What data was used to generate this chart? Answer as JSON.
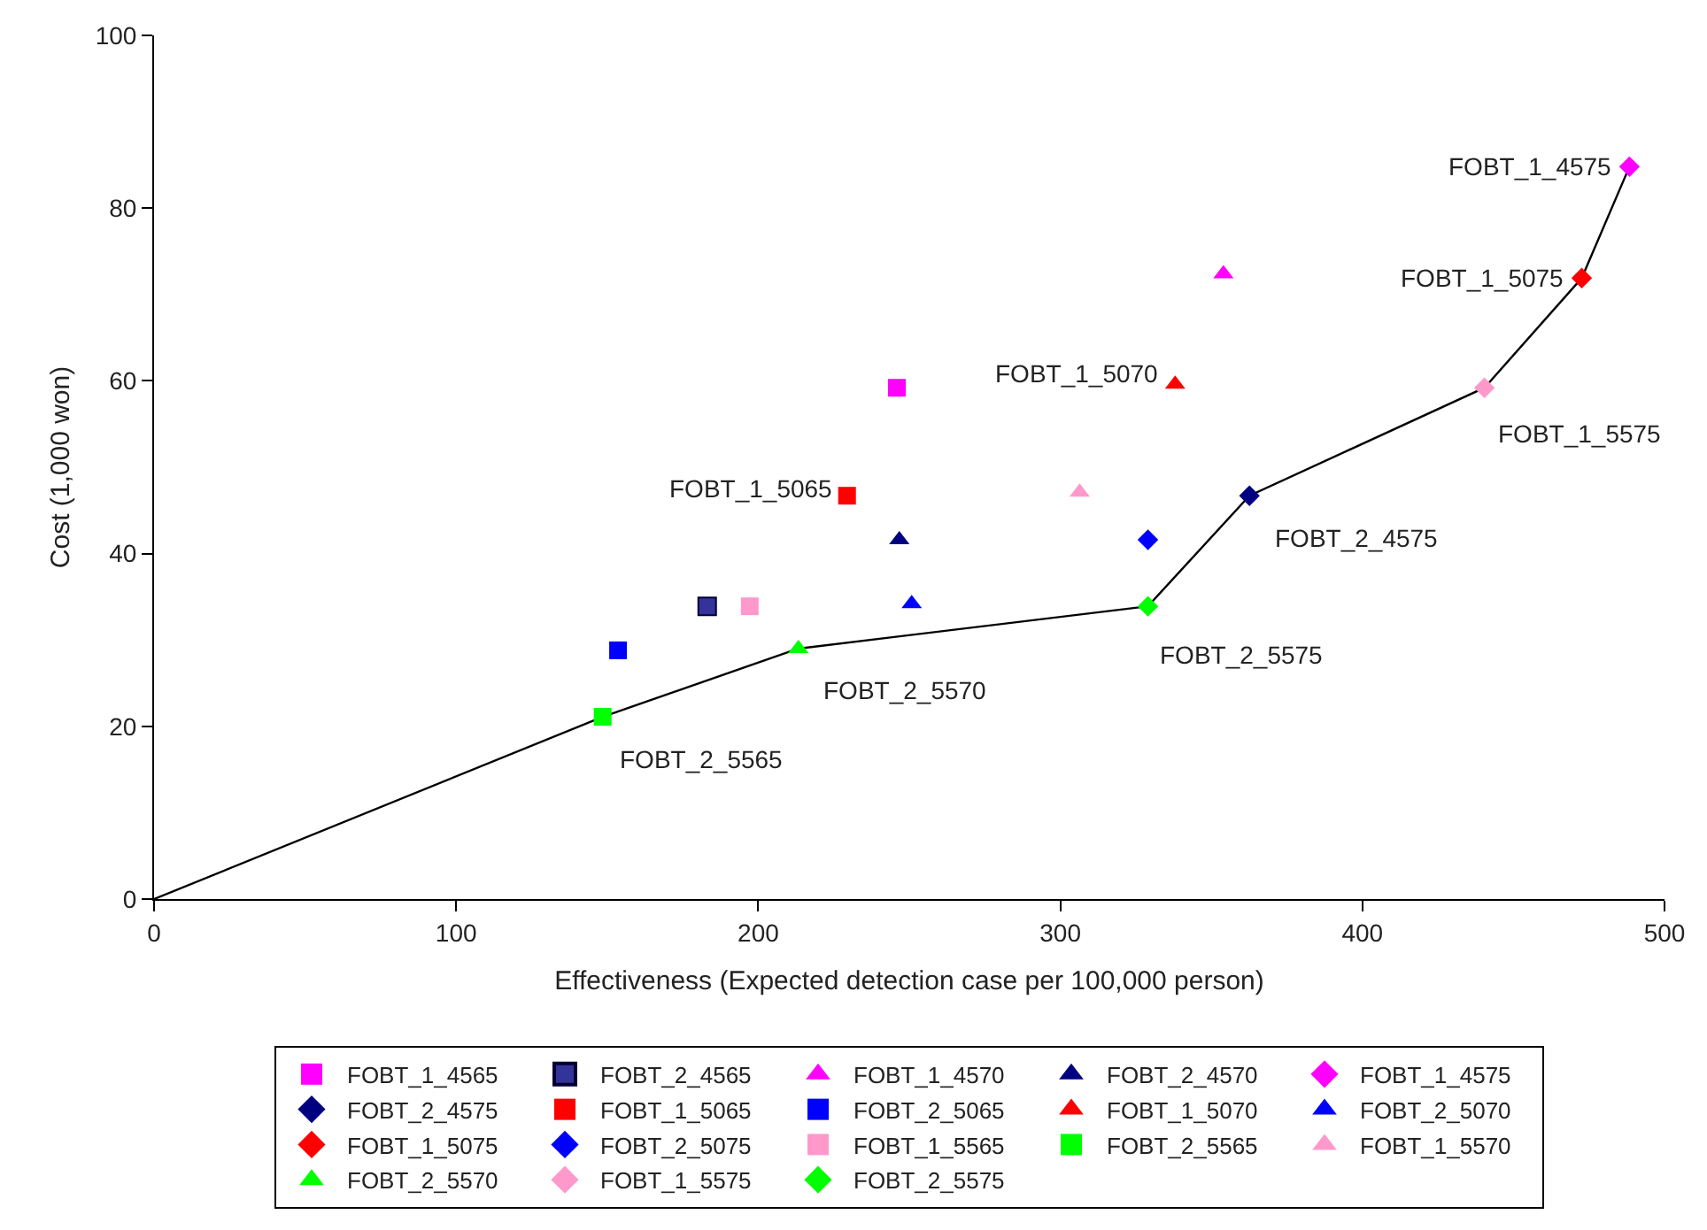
{
  "chart_data": {
    "type": "scatter",
    "xlabel": "Effectiveness (Expected detection case per 100,000 person)",
    "ylabel": "Cost (1,000 won)",
    "xlim": [
      0,
      500
    ],
    "xticks": [
      0,
      100,
      200,
      300,
      400,
      500
    ],
    "ylim": [
      0,
      100
    ],
    "yticks": [
      0,
      20,
      40,
      60,
      80,
      100
    ],
    "legend": "bottom",
    "series": [
      {
        "name": "FOBT_1_4565",
        "color": "#ff00ff",
        "marker": "square",
        "x": [
          245.9
        ],
        "values": [
          59.2
        ]
      },
      {
        "name": "FOBT_2_4565",
        "color": "#333399",
        "marker": "square",
        "x": [
          183.1
        ],
        "values": [
          33.9
        ]
      },
      {
        "name": "FOBT_1_4570",
        "color": "#ff00ff",
        "marker": "triangle",
        "x": [
          354.0
        ],
        "values": [
          72.4
        ]
      },
      {
        "name": "FOBT_2_4570",
        "color": "#000080",
        "marker": "triangle",
        "x": [
          246.7
        ],
        "values": [
          41.6
        ]
      },
      {
        "name": "FOBT_1_4575",
        "color": "#ff00ff",
        "marker": "diamond",
        "x": [
          488.4
        ],
        "values": [
          84.8
        ]
      },
      {
        "name": "FOBT_2_4575",
        "color": "#000080",
        "marker": "diamond",
        "x": [
          362.6
        ],
        "values": [
          46.7
        ]
      },
      {
        "name": "FOBT_1_5065",
        "color": "#ff0000",
        "marker": "square",
        "x": [
          229.4
        ],
        "values": [
          46.7
        ]
      },
      {
        "name": "FOBT_2_5065",
        "color": "#0000ff",
        "marker": "square",
        "x": [
          153.6
        ],
        "values": [
          28.8
        ]
      },
      {
        "name": "FOBT_1_5070",
        "color": "#ff0000",
        "marker": "triangle",
        "x": [
          338.0
        ],
        "values": [
          59.6
        ]
      },
      {
        "name": "FOBT_2_5070",
        "color": "#0000ff",
        "marker": "triangle",
        "x": [
          250.8
        ],
        "values": [
          34.2
        ]
      },
      {
        "name": "FOBT_1_5075",
        "color": "#ff0000",
        "marker": "diamond",
        "x": [
          472.6
        ],
        "values": [
          71.9
        ]
      },
      {
        "name": "FOBT_2_5075",
        "color": "#0000ff",
        "marker": "diamond",
        "x": [
          329.0
        ],
        "values": [
          41.6
        ]
      },
      {
        "name": "FOBT_1_5565",
        "color": "#ff99cc",
        "marker": "square",
        "x": [
          197.2
        ],
        "values": [
          33.9
        ]
      },
      {
        "name": "FOBT_2_5565",
        "color": "#00ff00",
        "marker": "square",
        "x": [
          148.5
        ],
        "values": [
          21.1
        ]
      },
      {
        "name": "FOBT_1_5570",
        "color": "#ff99cc",
        "marker": "triangle",
        "x": [
          306.4
        ],
        "values": [
          47.1
        ]
      },
      {
        "name": "FOBT_2_5570",
        "color": "#00ff00",
        "marker": "triangle",
        "x": [
          213.3
        ],
        "values": [
          29.0
        ]
      },
      {
        "name": "FOBT_1_5575",
        "color": "#ff99cc",
        "marker": "diamond",
        "x": [
          440.4
        ],
        "values": [
          59.2
        ]
      },
      {
        "name": "FOBT_2_5575",
        "color": "#00ff00",
        "marker": "diamond",
        "x": [
          329.0
        ],
        "values": [
          33.9
        ]
      },
      {
        "type": "line",
        "color": "#000000",
        "marker": "none",
        "line_style": "solid",
        "x": [
          0,
          148.5,
          213.3,
          329.0,
          362.6,
          440.4,
          472.6,
          488.4
        ],
        "values": [
          0,
          21.1,
          29.0,
          33.9,
          46.7,
          59.2,
          71.9,
          84.8
        ]
      }
    ],
    "annotations": [
      {
        "text": "FOBT_1_4575",
        "x": 488.4,
        "y": 84.8
      },
      {
        "text": "FOBT_1_5075",
        "x": 472.6,
        "y": 71.9
      },
      {
        "text": "FOBT_1_5575",
        "x": 440.4,
        "y": 59.2
      },
      {
        "text": "FOBT_1_5070",
        "x": 338.0,
        "y": 59.6
      },
      {
        "text": "FOBT_1_5065",
        "x": 229.4,
        "y": 46.7
      },
      {
        "text": "FOBT_2_4575",
        "x": 362.6,
        "y": 46.7
      },
      {
        "text": "FOBT_2_5575",
        "x": 329.0,
        "y": 33.9
      },
      {
        "text": "FOBT_2_5570",
        "x": 213.3,
        "y": 29.0
      },
      {
        "text": "FOBT_2_5565",
        "x": 148.5,
        "y": 21.1
      }
    ]
  }
}
